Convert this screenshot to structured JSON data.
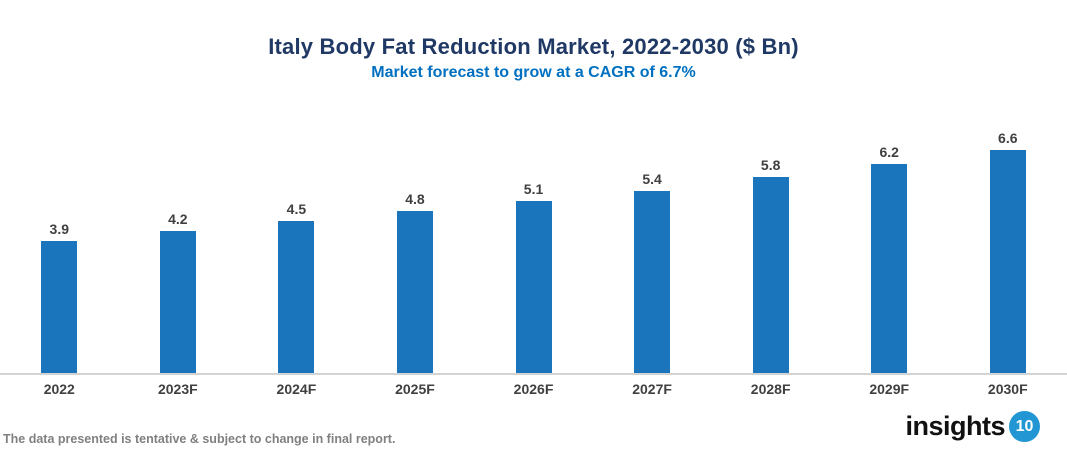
{
  "header": {
    "title": "Italy Body Fat Reduction Market, 2022-2030 ($ Bn)",
    "subtitle": "Market forecast to grow at a CAGR of 6.7%"
  },
  "chart_data": {
    "type": "bar",
    "title": "Italy Body Fat Reduction Market, 2022-2030 ($ Bn)",
    "subtitle": "Market forecast to grow at a CAGR of 6.7%",
    "categories": [
      "2022",
      "2023F",
      "2024F",
      "2025F",
      "2026F",
      "2027F",
      "2028F",
      "2029F",
      "2030F"
    ],
    "values": [
      3.9,
      4.2,
      4.5,
      4.8,
      5.1,
      5.4,
      5.8,
      6.2,
      6.6
    ],
    "xlabel": "",
    "ylabel": "",
    "ylim": [
      0,
      7.2
    ],
    "grid": false,
    "legend": false,
    "value_label_position": "above-bar",
    "value_label_format": "one-decimal"
  },
  "footer": {
    "disclaimer": "The data presented is tentative & subject to change in final report.",
    "logo_text": "insights",
    "logo_badge": "10"
  },
  "colors": {
    "title": "#1F3864",
    "subtitle": "#0070C0",
    "bar": "#1B75BC",
    "value_label": "#404040",
    "axis_label": "#404040",
    "axis_line": "#D3D3D3",
    "disclaimer": "#808080",
    "logo_text": "#111111",
    "logo_badge_bg": "#2196D3",
    "logo_badge_text": "#FFFFFF"
  }
}
